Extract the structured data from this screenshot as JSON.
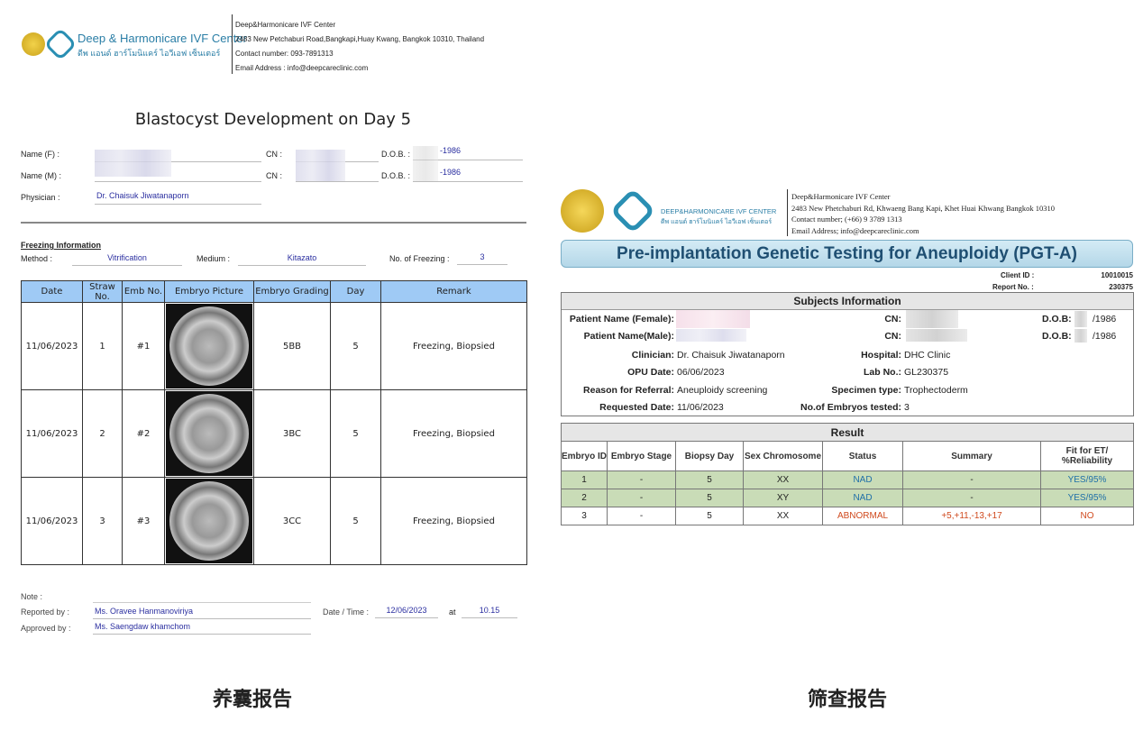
{
  "left_report": {
    "logo_name": "Deep & Harmonicare IVF Center",
    "logo_thai": "ดีพ แอนด์ ฮาร์โมนิแคร์ ไอวีเอฟ เซ็นเตอร์",
    "address": [
      "Deep&Harmonicare IVF Center",
      "2483 New Petchaburi Road,Bangkapi,Huay Kwang, Bangkok 10310, Thailand",
      "Contact number: 093-7891313",
      "Email Address : info@deepcareclinic.com"
    ],
    "title": "Blastocyst Development on Day 5",
    "name_f_label": "Name (F) :",
    "name_m_label": "Name (M) :",
    "physician_label": "Physician :",
    "physician": "Dr. Chaisuk  Jiwatanaporn",
    "cn_label": "CN :",
    "dob_label": "D.O.B. :",
    "dob_f": "-1986",
    "dob_m": "-1986",
    "freezing_title": "Freezing Information",
    "method_label": "Method :",
    "method": "Vitrification",
    "medium_label": "Medium :",
    "medium": "Kitazato",
    "nof_label": "No. of Freezing :",
    "nof": "3",
    "columns": [
      "Date",
      "Straw No.",
      "Emb No.",
      "Embryo Picture",
      "Embryo Grading",
      "Day",
      "Remark"
    ],
    "rows": [
      {
        "date": "11/06/2023",
        "straw": "1",
        "emb": "#1",
        "grading": "5BB",
        "day": "5",
        "remark": "Freezing, Biopsied"
      },
      {
        "date": "11/06/2023",
        "straw": "2",
        "emb": "#2",
        "grading": "3BC",
        "day": "5",
        "remark": "Freezing, Biopsied"
      },
      {
        "date": "11/06/2023",
        "straw": "3",
        "emb": "#3",
        "grading": "3CC",
        "day": "5",
        "remark": "Freezing, Biopsied"
      }
    ],
    "note_label": "Note :",
    "reported_label": "Reported by :",
    "reported": "Ms. Oravee Hanmanoviriya",
    "approved_label": "Approved by :",
    "approved": "Ms. Saengdaw khamchom",
    "datetime_label": "Date / Time :",
    "date": "12/06/2023",
    "at_label": "at",
    "time": "10.15",
    "caption": "养囊报告"
  },
  "right_report": {
    "logo_name": "DEEP&HARMONICARE IVF CENTER",
    "logo_thai": "ดีพ แอนด์ ฮาร์โมนิแคร์ ไอวีเอฟ เซ็นเตอร์",
    "address": [
      "Deep&Harmonicare IVF Center",
      "2483 New Phetchaburi Rd, Khwaeng Bang Kapi, Khet Huai Khwang Bangkok 10310",
      "Contact number; (+66) 9 3789 1313",
      "Email Address; info@deepcareclinic.com"
    ],
    "title": "Pre-implantation Genetic Testing for Aneuploidy (PGT-A)",
    "client_id_label": "Client ID :",
    "client_id": "10010015",
    "report_no_label": "Report No. :",
    "report_no": "230375",
    "subjects_title": "Subjects Information",
    "female_label": "Patient Name (Female):",
    "male_label": "Patient Name(Male):",
    "cn_label": "CN:",
    "dob_label": "D.O.B:",
    "dob_f": "/1986",
    "dob_m": "/1986",
    "clinician_label": "Clinician:",
    "clinician": "Dr. Chaisuk Jiwatanaporn",
    "hospital_label": "Hospital:",
    "hospital": "DHC Clinic",
    "opu_label": "OPU Date:",
    "opu": "06/06/2023",
    "lab_label": "Lab No.:",
    "lab": "GL230375",
    "reason_label": "Reason for Referral:",
    "reason": "Aneuploidy screening",
    "specimen_label": "Specimen type:",
    "specimen": "Trophectoderm",
    "requested_label": "Requested Date:",
    "requested": "11/06/2023",
    "embryos_label": "No.of Embryos tested:",
    "embryos": "3",
    "result_title": "Result",
    "columns": [
      "Embryo ID",
      "Embryo Stage",
      "Biopsy Day",
      "Sex Chromosome",
      "Status",
      "Summary",
      "Fit for ET/ %Reliability"
    ],
    "rows": [
      {
        "id": "1",
        "stage": "-",
        "day": "5",
        "sex": "XX",
        "status": "NAD",
        "summary": "-",
        "fit": "YES/95%"
      },
      {
        "id": "2",
        "stage": "-",
        "day": "5",
        "sex": "XY",
        "status": "NAD",
        "summary": "-",
        "fit": "YES/95%"
      },
      {
        "id": "3",
        "stage": "-",
        "day": "5",
        "sex": "XX",
        "status": "ABNORMAL",
        "summary": "+5,+11,-13,+17",
        "fit": "NO"
      }
    ],
    "colors": {
      "normal_row": "#c9dcb7",
      "normal_text": "#1f6fa8",
      "abnormal_text": "#d04a1e",
      "banner": "#bcdcec"
    },
    "caption": "筛查报告"
  }
}
